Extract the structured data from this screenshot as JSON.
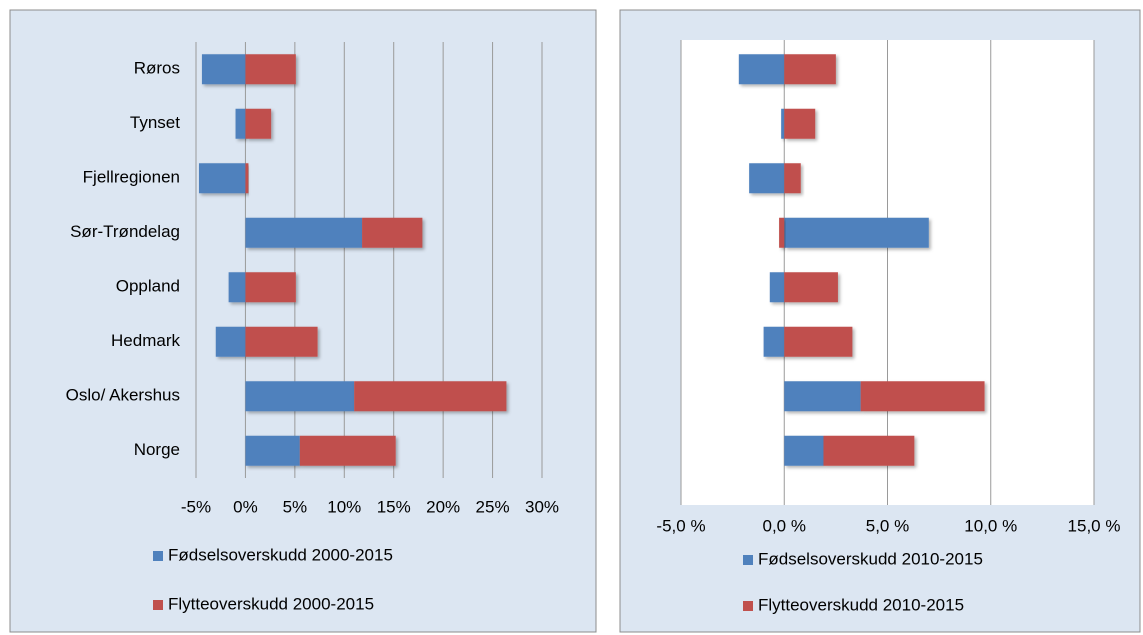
{
  "chart_data": [
    {
      "type": "bar",
      "orientation": "horizontal",
      "stacked": true,
      "grid": true,
      "legend": "bottom",
      "categories": [
        "Røros",
        "Tynset",
        "Fjellregionen",
        "Sør-Trøndelag",
        "Oppland",
        "Hedmark",
        "Oslo/ Akershus",
        "Norge"
      ],
      "series": [
        {
          "name": "Fødselsoverskudd 2000-2015",
          "color": "#4f81bd",
          "values": [
            -4.4,
            -1.0,
            -4.7,
            11.8,
            -1.7,
            -3.0,
            11.0,
            5.5
          ]
        },
        {
          "name": "Flytteoverskudd 2000-2015",
          "color": "#c0504d",
          "values": [
            5.1,
            2.6,
            0.3,
            6.1,
            5.1,
            7.3,
            15.4,
            9.7
          ]
        }
      ],
      "xlim": [
        -5,
        30
      ],
      "xticks": [
        {
          "value": -5,
          "label": "-5%"
        },
        {
          "value": 0,
          "label": "0%"
        },
        {
          "value": 5,
          "label": "5%"
        },
        {
          "value": 10,
          "label": "10%"
        },
        {
          "value": 15,
          "label": "15%"
        },
        {
          "value": 20,
          "label": "20%"
        },
        {
          "value": 25,
          "label": "25%"
        },
        {
          "value": 30,
          "label": "30%"
        }
      ]
    },
    {
      "type": "bar",
      "orientation": "horizontal",
      "stacked": true,
      "grid": true,
      "legend": "bottom",
      "series": [
        {
          "name": "Fødselsoverskudd 2010-2015",
          "color": "#4f81bd",
          "values": [
            -2.2,
            -0.15,
            -1.7,
            7.0,
            -0.7,
            -1.0,
            3.7,
            1.9
          ]
        },
        {
          "name": "Flytteoverskudd 2010-2015",
          "color": "#c0504d",
          "values": [
            2.5,
            1.5,
            0.8,
            -0.25,
            2.6,
            3.3,
            6.0,
            4.4
          ]
        }
      ],
      "xlim": [
        -5,
        15
      ],
      "xticks": [
        {
          "value": -5,
          "label": "-5,0 %"
        },
        {
          "value": 0,
          "label": "0,0 %"
        },
        {
          "value": 5,
          "label": "5,0 %"
        },
        {
          "value": 10,
          "label": "10,0 %"
        },
        {
          "value": 15,
          "label": "15,0 %"
        }
      ]
    }
  ]
}
